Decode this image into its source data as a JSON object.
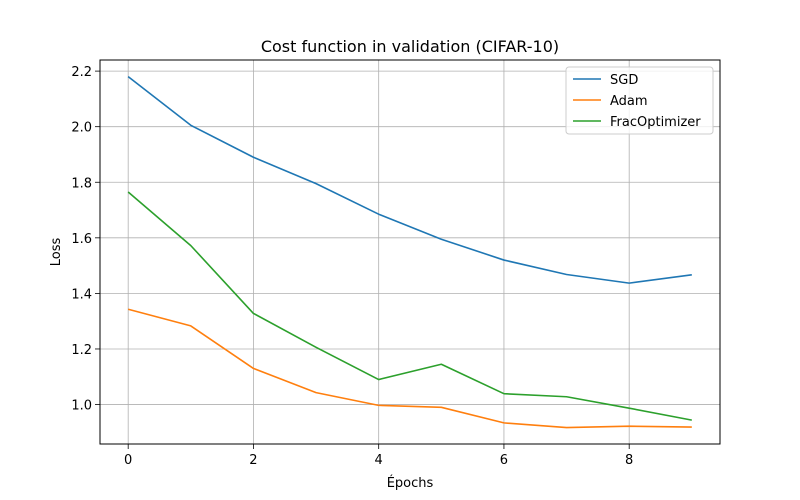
{
  "chart_data": {
    "type": "line",
    "title": "Cost function in validation (CIFAR-10)",
    "xlabel": "Épochs",
    "ylabel": "Loss",
    "x": [
      0,
      1,
      2,
      3,
      4,
      5,
      6,
      7,
      8,
      9
    ],
    "xlim": [
      -0.45,
      9.45
    ],
    "ylim": [
      0.858,
      2.24
    ],
    "xticks": [
      0,
      2,
      4,
      6,
      8
    ],
    "yticks": [
      1.0,
      1.2,
      1.4,
      1.6,
      1.8,
      2.0,
      2.2
    ],
    "grid": true,
    "legend_position": "top-right",
    "series": [
      {
        "name": "SGD",
        "color": "#1f77b4",
        "values": [
          2.18,
          2.005,
          1.89,
          1.795,
          1.685,
          1.595,
          1.52,
          1.468,
          1.437,
          1.467
        ]
      },
      {
        "name": "Adam",
        "color": "#ff7f0e",
        "values": [
          1.343,
          1.283,
          1.13,
          1.043,
          0.997,
          0.99,
          0.934,
          0.917,
          0.922,
          0.919
        ]
      },
      {
        "name": "FracOptimizer",
        "color": "#2ca02c",
        "values": [
          1.765,
          1.572,
          1.328,
          1.206,
          1.09,
          1.145,
          1.039,
          1.028,
          0.987,
          0.944
        ]
      }
    ]
  }
}
